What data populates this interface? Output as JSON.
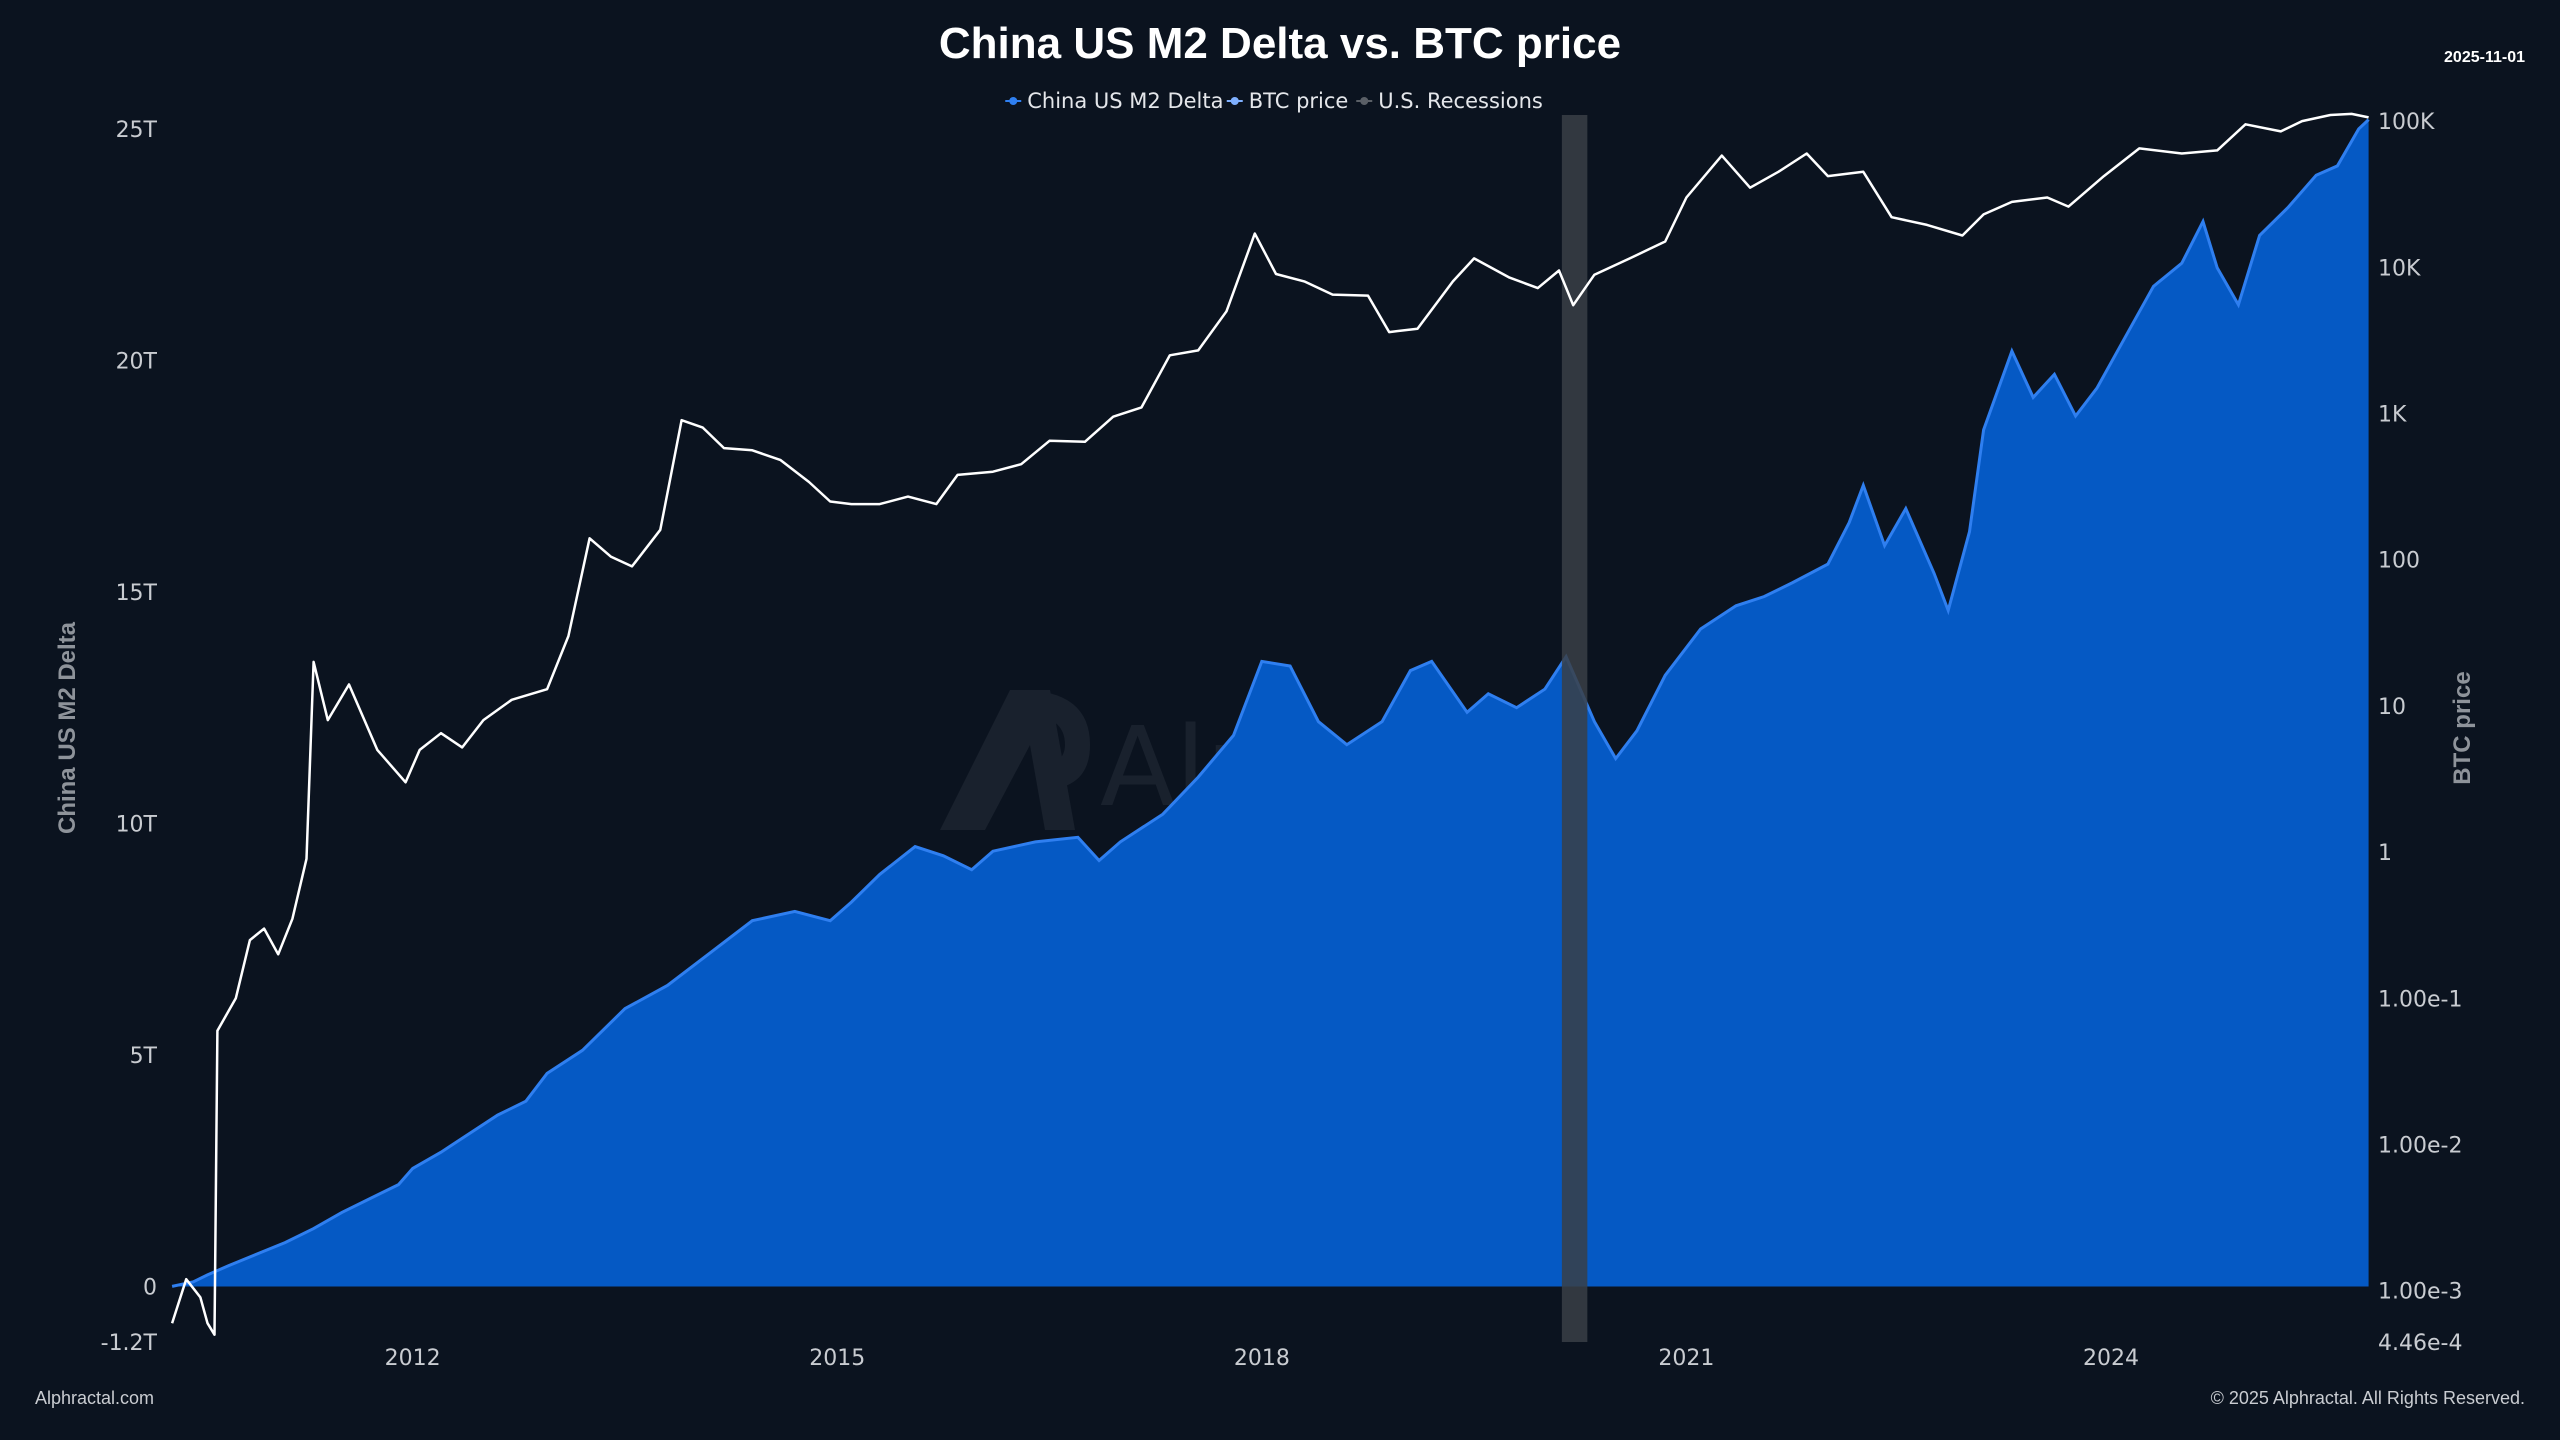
{
  "chart_data": {
    "type": "area+line",
    "title": "China US M2 Delta vs. BTC price",
    "date_stamp": "2025-11-01",
    "legend": {
      "placement": "top-center",
      "items": [
        {
          "label": "China US M2 Delta",
          "color": "#2f7ff0"
        },
        {
          "label": "BTC price",
          "color": "#7fb0ff"
        },
        {
          "label": "U.S. Recessions",
          "color": "#5a5f66"
        }
      ]
    },
    "y_left": {
      "label": "China US M2 Delta",
      "range": [
        -1.2,
        25.3
      ],
      "ticks": [
        {
          "v": 25,
          "label": "25T"
        },
        {
          "v": 20,
          "label": "20T"
        },
        {
          "v": 15,
          "label": "15T"
        },
        {
          "v": 10,
          "label": "10T"
        },
        {
          "v": 5,
          "label": "5T"
        },
        {
          "v": 0,
          "label": "0"
        },
        {
          "v": -1.2,
          "label": "-1.2T"
        }
      ]
    },
    "y_right": {
      "label": "BTC price",
      "scale": "log",
      "range": [
        0.000446,
        110000
      ],
      "ticks": [
        {
          "v": 100000,
          "label": "100K"
        },
        {
          "v": 10000,
          "label": "10K"
        },
        {
          "v": 1000,
          "label": "1K"
        },
        {
          "v": 100,
          "label": "100"
        },
        {
          "v": 10,
          "label": "10"
        },
        {
          "v": 1,
          "label": "1"
        },
        {
          "v": 0.1,
          "label": "1.00e-1"
        },
        {
          "v": 0.01,
          "label": "1.00e-2"
        },
        {
          "v": 0.001,
          "label": "1.00e-3"
        },
        {
          "v": 0.000446,
          "label": "4.46e-4"
        }
      ]
    },
    "x_axis": {
      "range": [
        2010.25,
        2025.83
      ],
      "ticks": [
        {
          "v": 2012,
          "label": "2012"
        },
        {
          "v": 2015,
          "label": "2015"
        },
        {
          "v": 2018,
          "label": "2018"
        },
        {
          "v": 2021,
          "label": "2021"
        },
        {
          "v": 2024,
          "label": "2024"
        }
      ]
    },
    "recessions": [
      {
        "start": 2020.12,
        "end": 2020.3
      }
    ],
    "series": [
      {
        "name": "China US M2 Delta",
        "axis": "left",
        "color": "#2f7ff0",
        "fill": "#0559c4",
        "points": [
          [
            2010.3,
            0.0
          ],
          [
            2010.45,
            0.1
          ],
          [
            2010.55,
            0.25
          ],
          [
            2010.7,
            0.45
          ],
          [
            2010.9,
            0.7
          ],
          [
            2011.1,
            0.95
          ],
          [
            2011.3,
            1.25
          ],
          [
            2011.5,
            1.6
          ],
          [
            2011.7,
            1.9
          ],
          [
            2011.9,
            2.2
          ],
          [
            2012.0,
            2.55
          ],
          [
            2012.2,
            2.9
          ],
          [
            2012.4,
            3.3
          ],
          [
            2012.6,
            3.7
          ],
          [
            2012.8,
            4.0
          ],
          [
            2012.95,
            4.6
          ],
          [
            2013.2,
            5.1
          ],
          [
            2013.5,
            6.0
          ],
          [
            2013.8,
            6.5
          ],
          [
            2014.1,
            7.2
          ],
          [
            2014.4,
            7.9
          ],
          [
            2014.7,
            8.1
          ],
          [
            2014.95,
            7.9
          ],
          [
            2015.1,
            8.3
          ],
          [
            2015.3,
            8.9
          ],
          [
            2015.55,
            9.5
          ],
          [
            2015.75,
            9.3
          ],
          [
            2015.95,
            9.0
          ],
          [
            2016.1,
            9.4
          ],
          [
            2016.4,
            9.6
          ],
          [
            2016.7,
            9.7
          ],
          [
            2016.85,
            9.2
          ],
          [
            2017.0,
            9.6
          ],
          [
            2017.3,
            10.2
          ],
          [
            2017.55,
            11.0
          ],
          [
            2017.8,
            11.9
          ],
          [
            2018.0,
            13.5
          ],
          [
            2018.2,
            13.4
          ],
          [
            2018.4,
            12.2
          ],
          [
            2018.6,
            11.7
          ],
          [
            2018.85,
            12.2
          ],
          [
            2019.05,
            13.3
          ],
          [
            2019.2,
            13.5
          ],
          [
            2019.45,
            12.4
          ],
          [
            2019.6,
            12.8
          ],
          [
            2019.8,
            12.5
          ],
          [
            2020.0,
            12.9
          ],
          [
            2020.15,
            13.6
          ],
          [
            2020.35,
            12.2
          ],
          [
            2020.5,
            11.4
          ],
          [
            2020.65,
            12.0
          ],
          [
            2020.85,
            13.2
          ],
          [
            2021.1,
            14.2
          ],
          [
            2021.35,
            14.7
          ],
          [
            2021.55,
            14.9
          ],
          [
            2021.75,
            15.2
          ],
          [
            2022.0,
            15.6
          ],
          [
            2022.15,
            16.5
          ],
          [
            2022.25,
            17.3
          ],
          [
            2022.4,
            16.0
          ],
          [
            2022.55,
            16.8
          ],
          [
            2022.75,
            15.4
          ],
          [
            2022.85,
            14.6
          ],
          [
            2023.0,
            16.3
          ],
          [
            2023.1,
            18.5
          ],
          [
            2023.3,
            20.2
          ],
          [
            2023.45,
            19.2
          ],
          [
            2023.6,
            19.7
          ],
          [
            2023.75,
            18.8
          ],
          [
            2023.9,
            19.4
          ],
          [
            2024.1,
            20.5
          ],
          [
            2024.3,
            21.6
          ],
          [
            2024.5,
            22.1
          ],
          [
            2024.65,
            23.0
          ],
          [
            2024.75,
            22.0
          ],
          [
            2024.9,
            21.2
          ],
          [
            2025.05,
            22.7
          ],
          [
            2025.25,
            23.3
          ],
          [
            2025.45,
            24.0
          ],
          [
            2025.6,
            24.2
          ],
          [
            2025.75,
            25.0
          ],
          [
            2025.82,
            25.2
          ]
        ]
      },
      {
        "name": "BTC price",
        "axis": "right",
        "color": "#ffffff",
        "points": [
          [
            2010.3,
            0.0006
          ],
          [
            2010.4,
            0.0012
          ],
          [
            2010.5,
            0.0009
          ],
          [
            2010.55,
            0.0006
          ],
          [
            2010.6,
            0.0005
          ],
          [
            2010.62,
            0.06
          ],
          [
            2010.75,
            0.1
          ],
          [
            2010.85,
            0.25
          ],
          [
            2010.95,
            0.3
          ],
          [
            2011.05,
            0.2
          ],
          [
            2011.15,
            0.35
          ],
          [
            2011.25,
            0.9
          ],
          [
            2011.3,
            20
          ],
          [
            2011.4,
            8
          ],
          [
            2011.55,
            14
          ],
          [
            2011.75,
            5
          ],
          [
            2011.95,
            3
          ],
          [
            2012.05,
            5
          ],
          [
            2012.2,
            6.5
          ],
          [
            2012.35,
            5.2
          ],
          [
            2012.5,
            8
          ],
          [
            2012.7,
            11
          ],
          [
            2012.95,
            13
          ],
          [
            2013.1,
            30
          ],
          [
            2013.25,
            140
          ],
          [
            2013.4,
            105
          ],
          [
            2013.55,
            90
          ],
          [
            2013.75,
            160
          ],
          [
            2013.9,
            900
          ],
          [
            2014.05,
            800
          ],
          [
            2014.2,
            580
          ],
          [
            2014.4,
            560
          ],
          [
            2014.6,
            480
          ],
          [
            2014.8,
            340
          ],
          [
            2014.95,
            250
          ],
          [
            2015.1,
            240
          ],
          [
            2015.3,
            240
          ],
          [
            2015.5,
            270
          ],
          [
            2015.7,
            240
          ],
          [
            2015.85,
            380
          ],
          [
            2016.1,
            400
          ],
          [
            2016.3,
            450
          ],
          [
            2016.5,
            650
          ],
          [
            2016.75,
            640
          ],
          [
            2016.95,
            950
          ],
          [
            2017.15,
            1100
          ],
          [
            2017.35,
            2500
          ],
          [
            2017.55,
            2700
          ],
          [
            2017.75,
            5000
          ],
          [
            2017.95,
            17000
          ],
          [
            2018.1,
            9000
          ],
          [
            2018.3,
            8000
          ],
          [
            2018.5,
            6500
          ],
          [
            2018.75,
            6400
          ],
          [
            2018.9,
            3600
          ],
          [
            2019.1,
            3800
          ],
          [
            2019.35,
            8000
          ],
          [
            2019.5,
            11500
          ],
          [
            2019.75,
            8500
          ],
          [
            2019.95,
            7200
          ],
          [
            2020.1,
            9500
          ],
          [
            2020.2,
            5500
          ],
          [
            2020.35,
            8900
          ],
          [
            2020.6,
            11500
          ],
          [
            2020.85,
            15000
          ],
          [
            2021.0,
            30000
          ],
          [
            2021.25,
            58000
          ],
          [
            2021.45,
            35000
          ],
          [
            2021.65,
            45000
          ],
          [
            2021.85,
            60000
          ],
          [
            2022.0,
            42000
          ],
          [
            2022.25,
            45000
          ],
          [
            2022.45,
            22000
          ],
          [
            2022.7,
            19500
          ],
          [
            2022.95,
            16500
          ],
          [
            2023.1,
            23000
          ],
          [
            2023.3,
            28000
          ],
          [
            2023.55,
            30000
          ],
          [
            2023.7,
            26000
          ],
          [
            2023.95,
            42000
          ],
          [
            2024.2,
            65000
          ],
          [
            2024.5,
            60000
          ],
          [
            2024.75,
            63000
          ],
          [
            2024.95,
            95000
          ],
          [
            2025.2,
            85000
          ],
          [
            2025.35,
            100000
          ],
          [
            2025.55,
            110000
          ],
          [
            2025.7,
            112000
          ],
          [
            2025.82,
            106000
          ]
        ]
      }
    ],
    "watermark": "Alphractal"
  },
  "footer": {
    "left": "Alphractal.com",
    "right": "© 2025 Alphractal. All Rights Reserved."
  },
  "colors": {
    "background": "#0b131f",
    "area_fill": "#0559c4",
    "area_stroke": "#2f7ff0",
    "btc_line": "#ffffff",
    "recession_band": "#3a3f47",
    "tick_text": "#c9ccd1",
    "axis_label": "#8e939a"
  }
}
